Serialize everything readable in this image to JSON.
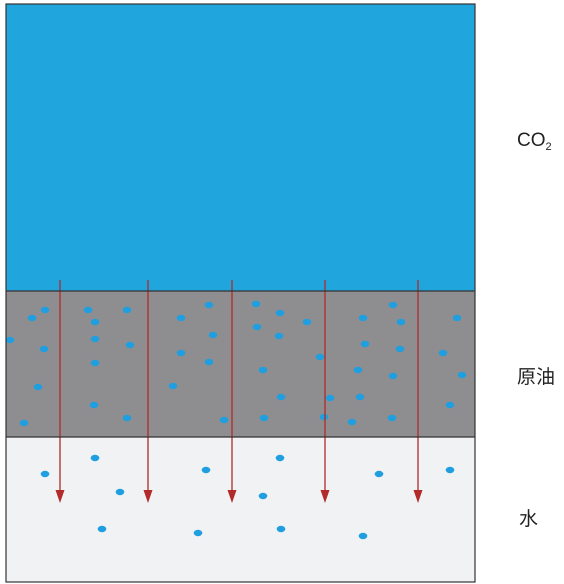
{
  "layers": [
    {
      "key": "co2",
      "color": "#20a5dc"
    },
    {
      "key": "oil",
      "color": "#8e8e90"
    },
    {
      "key": "water",
      "color": "#f1f2f4"
    }
  ],
  "labels": {
    "co2_main": "CO",
    "co2_sub": "2",
    "oil": "原油",
    "water": "水"
  },
  "colors": {
    "arrow": "#b22a2a",
    "droplet": "#1f9fe0",
    "border": "#333333"
  },
  "arrow_count": 5
}
